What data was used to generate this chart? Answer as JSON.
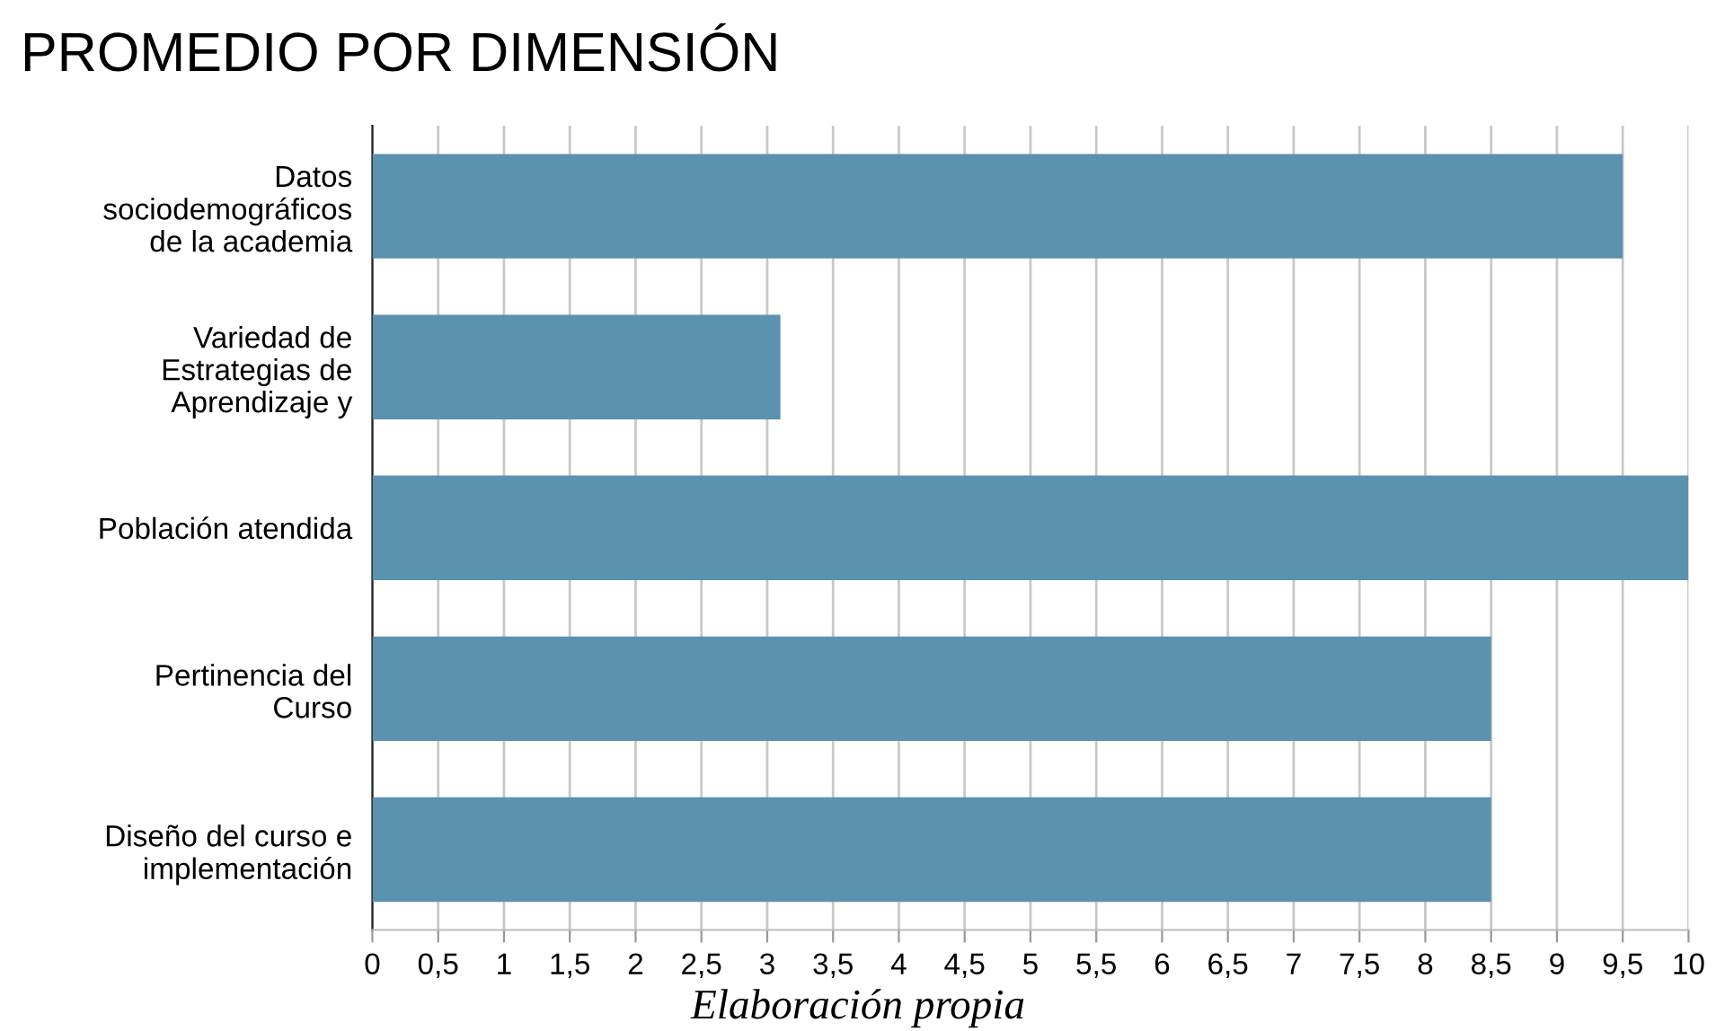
{
  "chart_data": {
    "type": "bar",
    "orientation": "horizontal",
    "title": "PROMEDIO POR DIMENSIÓN",
    "categories": [
      "Datos\nsociodemográficos\nde la academia",
      "Variedad de\nEstrategias de\nAprendizaje y",
      "Población atendida",
      "Pertinencia del\nCurso",
      "Diseño del curso e\nimplementación"
    ],
    "values": [
      9.5,
      3.1,
      10,
      8.5,
      8.5
    ],
    "color": "#5a92b0",
    "xlim": [
      0,
      10
    ],
    "xticks": [
      0,
      {
        "value": 0.5,
        "label": "0,5"
      },
      1,
      {
        "value": 1.5,
        "label": "1,5"
      },
      2,
      {
        "value": 2.5,
        "label": "2,5"
      },
      3,
      {
        "value": 3.5,
        "label": "3,5"
      },
      4,
      {
        "value": 4.5,
        "label": "4,5"
      },
      5,
      {
        "value": 5.5,
        "label": "5,5"
      },
      6,
      {
        "value": 6.5,
        "label": "6,5"
      },
      7,
      {
        "value": 7.5,
        "label": "7,5"
      },
      8,
      {
        "value": 8.5,
        "label": "8,5"
      },
      9,
      {
        "value": 9.5,
        "label": "9,5"
      },
      10
    ],
    "grid": "x",
    "annotations": [
      "Elaboración propia"
    ]
  }
}
